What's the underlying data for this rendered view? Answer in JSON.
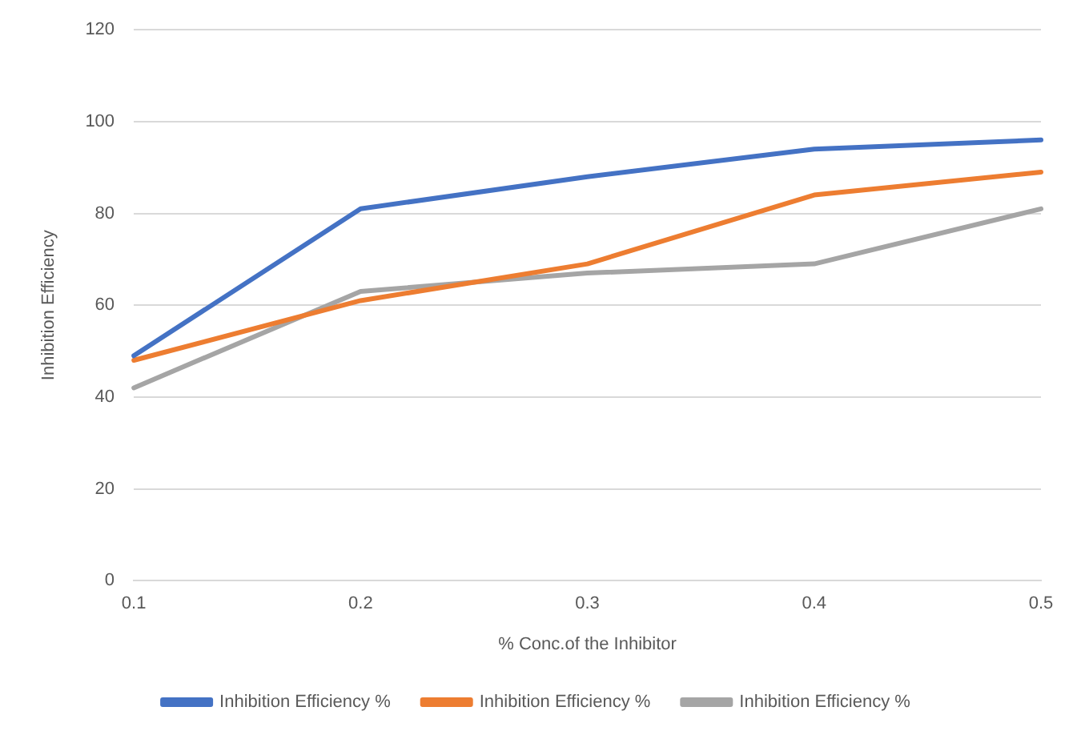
{
  "chart_data": {
    "type": "line",
    "xlabel": "% Conc.of the Inhibitor",
    "ylabel": "Inhibition Efficiency",
    "categories": [
      "0.1",
      "0.2",
      "0.3",
      "0.4",
      "0.5"
    ],
    "series": [
      {
        "name": "Inhibition Efficiency %",
        "color": "#4472c4",
        "values": [
          49,
          81,
          88,
          94,
          96
        ]
      },
      {
        "name": "Inhibition Efficiency %",
        "color": "#ed7d31",
        "values": [
          48,
          61,
          69,
          84,
          89
        ]
      },
      {
        "name": "Inhibition Efficiency %",
        "color": "#a5a5a5",
        "values": [
          42,
          63,
          67,
          69,
          81
        ]
      }
    ],
    "ylim": [
      0,
      120
    ],
    "yticks": [
      0,
      20,
      40,
      60,
      80,
      100,
      120
    ],
    "grid": "y",
    "legend": "bottom",
    "marker": "none",
    "line_style": "solid"
  }
}
